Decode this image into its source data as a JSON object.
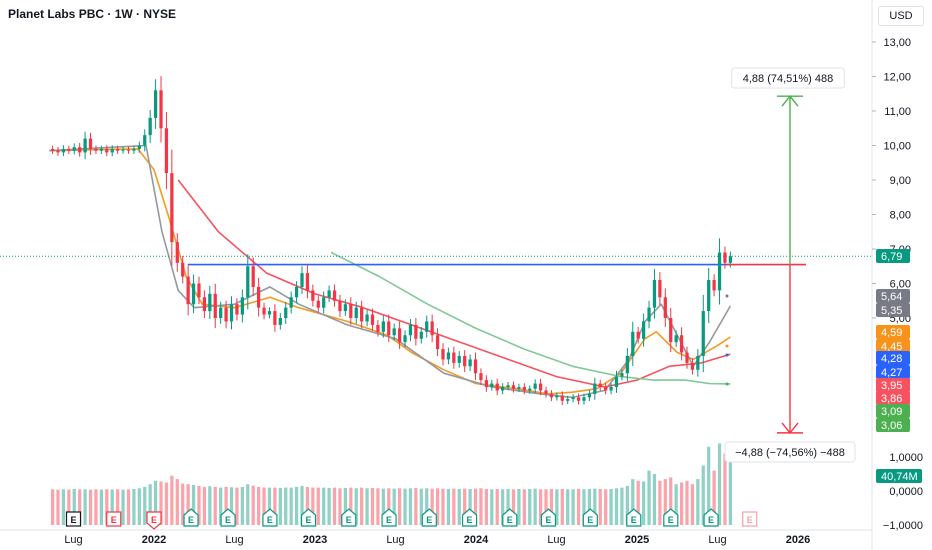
{
  "header": {
    "title": "Planet Labs PBC · 1W · NYSE",
    "currency": "USD"
  },
  "chart_data": {
    "type": "candlestick",
    "price_axis": {
      "ticks": [
        "13,00",
        "12,00",
        "11,00",
        "10,00",
        "9,00",
        "8,00",
        "7,00",
        "6,00",
        "5,00"
      ],
      "tick_values": [
        13,
        12,
        11,
        10,
        9,
        8,
        7,
        6,
        5
      ]
    },
    "volume_axis": {
      "ticks": [
        "1,0000",
        "0,0000",
        "−1,0000"
      ],
      "tick_values": [
        1,
        0,
        -1
      ]
    },
    "time_axis": {
      "labels": [
        "Lug",
        "2022",
        "Lug",
        "2023",
        "Lug",
        "2024",
        "Lug",
        "2025",
        "Lug",
        "2026"
      ],
      "bold": [
        false,
        true,
        false,
        true,
        false,
        true,
        false,
        true,
        false,
        true
      ],
      "positions_year": [
        2021.5,
        2022,
        2022.5,
        2023,
        2023.5,
        2024,
        2024.5,
        2025,
        2025.5,
        2026
      ]
    },
    "candles": [
      [
        9.9,
        9.85
      ],
      [
        9.86,
        9.8
      ],
      [
        9.8,
        9.9
      ],
      [
        9.9,
        9.85
      ],
      [
        9.85,
        9.95
      ],
      [
        9.95,
        9.8
      ],
      [
        9.8,
        10.2
      ],
      [
        10.2,
        9.9
      ],
      [
        9.9,
        9.85
      ],
      [
        9.85,
        9.9
      ],
      [
        9.9,
        9.8
      ],
      [
        9.8,
        9.9
      ],
      [
        9.9,
        9.85
      ],
      [
        9.85,
        9.88
      ],
      [
        9.88,
        9.85
      ],
      [
        9.85,
        9.9
      ],
      [
        9.9,
        10.0
      ],
      [
        10.0,
        10.3
      ],
      [
        10.3,
        10.8
      ],
      [
        10.8,
        11.6
      ],
      [
        11.6,
        10.5
      ],
      [
        10.5,
        9.2
      ],
      [
        9.2,
        7.2
      ],
      [
        7.2,
        6.6
      ],
      [
        6.6,
        6.2
      ],
      [
        6.2,
        5.4
      ],
      [
        5.4,
        6.0
      ],
      [
        6.0,
        5.6
      ],
      [
        5.6,
        5.2
      ],
      [
        5.2,
        5.7
      ],
      [
        5.7,
        5.0
      ],
      [
        5.0,
        5.3
      ],
      [
        5.3,
        4.9
      ],
      [
        4.9,
        5.4
      ],
      [
        5.4,
        5.1
      ],
      [
        5.1,
        5.6
      ],
      [
        5.6,
        6.5
      ],
      [
        6.5,
        5.9
      ],
      [
        5.9,
        5.3
      ],
      [
        5.3,
        5.1
      ],
      [
        5.1,
        5.2
      ],
      [
        5.2,
        4.8
      ],
      [
        4.8,
        5.0
      ],
      [
        5.0,
        5.3
      ],
      [
        5.3,
        5.6
      ],
      [
        5.6,
        5.9
      ],
      [
        5.9,
        6.3
      ],
      [
        6.3,
        5.8
      ],
      [
        5.8,
        5.5
      ],
      [
        5.5,
        5.3
      ],
      [
        5.3,
        5.6
      ],
      [
        5.6,
        5.8
      ],
      [
        5.8,
        5.5
      ],
      [
        5.5,
        5.2
      ],
      [
        5.2,
        5.4
      ],
      [
        5.4,
        5.0
      ],
      [
        5.0,
        5.3
      ],
      [
        5.3,
        4.9
      ],
      [
        4.9,
        5.1
      ],
      [
        5.1,
        4.8
      ],
      [
        4.8,
        4.6
      ],
      [
        4.6,
        4.9
      ],
      [
        4.9,
        4.5
      ],
      [
        4.5,
        4.7
      ],
      [
        4.7,
        4.3
      ],
      [
        4.3,
        4.5
      ],
      [
        4.5,
        4.8
      ],
      [
        4.8,
        4.4
      ],
      [
        4.4,
        4.6
      ],
      [
        4.6,
        4.9
      ],
      [
        4.9,
        4.5
      ],
      [
        4.5,
        4.1
      ],
      [
        4.1,
        3.8
      ],
      [
        3.8,
        4.0
      ],
      [
        4.0,
        3.7
      ],
      [
        3.7,
        3.9
      ],
      [
        3.9,
        3.6
      ],
      [
        3.6,
        3.8
      ],
      [
        3.8,
        3.4
      ],
      [
        3.4,
        3.2
      ],
      [
        3.2,
        3.0
      ],
      [
        3.0,
        3.1
      ],
      [
        3.1,
        2.9
      ],
      [
        2.9,
        3.0
      ],
      [
        3.0,
        3.05
      ],
      [
        3.05,
        2.95
      ],
      [
        2.95,
        3.0
      ],
      [
        3.0,
        2.9
      ],
      [
        2.9,
        2.95
      ],
      [
        2.95,
        3.1
      ],
      [
        3.1,
        2.9
      ],
      [
        2.9,
        2.8
      ],
      [
        2.8,
        2.7
      ],
      [
        2.7,
        2.75
      ],
      [
        2.75,
        2.6
      ],
      [
        2.6,
        2.65
      ],
      [
        2.65,
        2.7
      ],
      [
        2.7,
        2.6
      ],
      [
        2.6,
        2.7
      ],
      [
        2.7,
        2.8
      ],
      [
        2.8,
        3.1
      ],
      [
        3.1,
        3.0
      ],
      [
        3.0,
        2.9
      ],
      [
        2.9,
        3.0
      ],
      [
        3.0,
        3.3
      ],
      [
        3.3,
        3.4
      ],
      [
        3.4,
        3.9
      ],
      [
        3.9,
        4.6
      ],
      [
        4.6,
        4.4
      ],
      [
        4.4,
        4.9
      ],
      [
        4.9,
        5.3
      ],
      [
        5.3,
        6.1
      ],
      [
        6.1,
        5.6
      ],
      [
        5.6,
        5.0
      ],
      [
        5.0,
        4.3
      ],
      [
        4.3,
        4.5
      ],
      [
        4.5,
        4.0
      ],
      [
        4.0,
        3.7
      ],
      [
        3.7,
        3.5
      ],
      [
        3.5,
        3.9
      ],
      [
        3.9,
        5.2
      ],
      [
        5.2,
        6.1
      ],
      [
        6.1,
        5.8
      ],
      [
        5.8,
        6.9
      ],
      [
        6.9,
        6.6
      ],
      [
        6.6,
        6.79
      ]
    ],
    "volumes": [
      0.05,
      0.04,
      0.05,
      0.04,
      0.06,
      0.05,
      0.05,
      0.04,
      0.05,
      0.04,
      0.05,
      0.04,
      0.05,
      0.04,
      0.05,
      0.06,
      0.08,
      0.12,
      0.2,
      0.3,
      0.28,
      0.25,
      0.45,
      0.35,
      0.22,
      0.2,
      0.18,
      0.15,
      0.12,
      0.14,
      0.12,
      0.1,
      0.12,
      0.11,
      0.1,
      0.12,
      0.2,
      0.16,
      0.12,
      0.1,
      0.1,
      0.1,
      0.09,
      0.1,
      0.1,
      0.12,
      0.15,
      0.12,
      0.1,
      0.1,
      0.1,
      0.09,
      0.1,
      0.08,
      0.09,
      0.1,
      0.08,
      0.1,
      0.08,
      0.09,
      0.08,
      0.07,
      0.08,
      0.07,
      0.08,
      0.07,
      0.08,
      0.09,
      0.07,
      0.08,
      0.07,
      0.08,
      0.07,
      0.06,
      0.07,
      0.06,
      0.07,
      0.06,
      0.07,
      0.08,
      0.06,
      0.05,
      0.06,
      0.05,
      0.06,
      0.05,
      0.06,
      0.05,
      0.06,
      0.07,
      0.05,
      0.05,
      0.06,
      0.05,
      0.06,
      0.05,
      0.05,
      0.06,
      0.05,
      0.06,
      0.07,
      0.06,
      0.05,
      0.06,
      0.08,
      0.1,
      0.15,
      0.35,
      0.3,
      0.28,
      0.6,
      0.5,
      0.3,
      0.35,
      0.4,
      0.2,
      0.25,
      0.3,
      0.2,
      0.35,
      0.75,
      1.3,
      0.6,
      1.4,
      1.1,
      0.9
    ],
    "earnings_markers": [
      {
        "x": 2021.5,
        "type": "future"
      },
      {
        "x": 2021.75,
        "type": "future"
      },
      {
        "x": 2022.0,
        "type": "red"
      },
      {
        "x": 2022.23,
        "type": "green"
      },
      {
        "x": 2022.46,
        "type": "green"
      },
      {
        "x": 2022.72,
        "type": "green"
      },
      {
        "x": 2022.96,
        "type": "green"
      },
      {
        "x": 2023.21,
        "type": "green"
      },
      {
        "x": 2023.46,
        "type": "green"
      },
      {
        "x": 2023.71,
        "type": "green"
      },
      {
        "x": 2023.96,
        "type": "green"
      },
      {
        "x": 2024.21,
        "type": "green"
      },
      {
        "x": 2024.45,
        "type": "green"
      },
      {
        "x": 2024.71,
        "type": "green"
      },
      {
        "x": 2024.98,
        "type": "green"
      },
      {
        "x": 2025.21,
        "type": "green"
      },
      {
        "x": 2025.46,
        "type": "green"
      },
      {
        "x": 2025.7,
        "type": "pending"
      }
    ],
    "earnings_letter": "E",
    "horizontal_line": {
      "price": 6.55,
      "from": 2022.21,
      "to": 2025.55,
      "color": "#2962ff"
    },
    "ma_lines": [
      {
        "color": "#f59a23",
        "points": [
          [
            2021.35,
            9.85
          ],
          [
            2021.9,
            9.9
          ],
          [
            2022.0,
            9.3
          ],
          [
            2022.1,
            7.8
          ],
          [
            2022.2,
            6.2
          ],
          [
            2022.3,
            5.4
          ],
          [
            2022.5,
            5.3
          ],
          [
            2022.72,
            5.6
          ],
          [
            2022.9,
            5.3
          ],
          [
            2023.2,
            4.9
          ],
          [
            2023.45,
            4.5
          ],
          [
            2023.6,
            4.0
          ],
          [
            2023.8,
            3.5
          ],
          [
            2024.0,
            3.1
          ],
          [
            2024.25,
            2.95
          ],
          [
            2024.45,
            2.8
          ],
          [
            2024.6,
            2.85
          ],
          [
            2024.75,
            2.95
          ],
          [
            2024.9,
            3.4
          ],
          [
            2025.05,
            4.4
          ],
          [
            2025.12,
            4.6
          ],
          [
            2025.25,
            4.0
          ],
          [
            2025.35,
            3.8
          ],
          [
            2025.5,
            4.2
          ],
          [
            2025.58,
            4.45
          ]
        ]
      },
      {
        "color": "#9598a1",
        "points": [
          [
            2021.35,
            9.85
          ],
          [
            2021.95,
            10.0
          ],
          [
            2022.05,
            7.5
          ],
          [
            2022.15,
            5.8
          ],
          [
            2022.25,
            5.3
          ],
          [
            2022.5,
            5.4
          ],
          [
            2022.72,
            5.9
          ],
          [
            2022.9,
            5.4
          ],
          [
            2023.2,
            4.8
          ],
          [
            2023.5,
            4.4
          ],
          [
            2023.8,
            3.4
          ],
          [
            2024.1,
            3.0
          ],
          [
            2024.4,
            2.8
          ],
          [
            2024.6,
            2.7
          ],
          [
            2024.8,
            2.9
          ],
          [
            2024.95,
            3.8
          ],
          [
            2025.05,
            4.9
          ],
          [
            2025.15,
            5.4
          ],
          [
            2025.25,
            4.5
          ],
          [
            2025.35,
            3.6
          ],
          [
            2025.45,
            4.3
          ],
          [
            2025.58,
            5.35
          ]
        ]
      },
      {
        "color": "#f7525f",
        "points": [
          [
            2022.15,
            9.0
          ],
          [
            2022.4,
            7.5
          ],
          [
            2022.7,
            6.3
          ],
          [
            2023.0,
            5.7
          ],
          [
            2023.3,
            5.3
          ],
          [
            2023.6,
            4.8
          ],
          [
            2023.9,
            4.3
          ],
          [
            2024.2,
            3.8
          ],
          [
            2024.5,
            3.3
          ],
          [
            2024.8,
            3.0
          ],
          [
            2025.0,
            3.2
          ],
          [
            2025.2,
            3.6
          ],
          [
            2025.4,
            3.7
          ],
          [
            2025.58,
            3.95
          ]
        ]
      },
      {
        "color": "#81c995",
        "points": [
          [
            2023.1,
            6.9
          ],
          [
            2023.4,
            6.2
          ],
          [
            2023.7,
            5.4
          ],
          [
            2024.0,
            4.7
          ],
          [
            2024.3,
            4.1
          ],
          [
            2024.6,
            3.6
          ],
          [
            2024.9,
            3.3
          ],
          [
            2025.1,
            3.2
          ],
          [
            2025.3,
            3.2
          ],
          [
            2025.45,
            3.1
          ],
          [
            2025.58,
            3.09
          ]
        ]
      }
    ],
    "projection_up": {
      "label": "4,88 (74,51%) 488",
      "from_price": 6.55,
      "to_price": 11.43,
      "color": "#4caf50"
    },
    "projection_down": {
      "label": "−4,88 (−74,56%) −488",
      "from_price": 6.55,
      "to_price": 1.67,
      "color": "#f23645"
    },
    "price_badges": [
      {
        "text": "6,79",
        "bg": "#089981",
        "price": 6.79
      },
      {
        "text": "5,64",
        "bg": "#787b86",
        "price": 5.64
      },
      {
        "text": "5,35",
        "bg": "#787b86",
        "price": 5.35
      },
      {
        "text": "4,59",
        "bg": "#f7931a",
        "price": 4.59
      },
      {
        "text": "4,45",
        "bg": "#f7931a",
        "price": 4.45
      },
      {
        "text": "4,28",
        "bg": "#2962ff",
        "price": 4.28
      },
      {
        "text": "4,27",
        "bg": "#2962ff",
        "price": 4.27
      },
      {
        "text": "3,95",
        "bg": "#f7525f",
        "price": 3.95
      },
      {
        "text": "3,86",
        "bg": "#f7525f",
        "price": 3.86
      },
      {
        "text": "3,09",
        "bg": "#4caf50",
        "price": 3.09
      },
      {
        "text": "3,06",
        "bg": "#4caf50",
        "price": 3.06
      }
    ],
    "volume_badge": {
      "text": "40,74M",
      "bg": "#089981"
    }
  }
}
